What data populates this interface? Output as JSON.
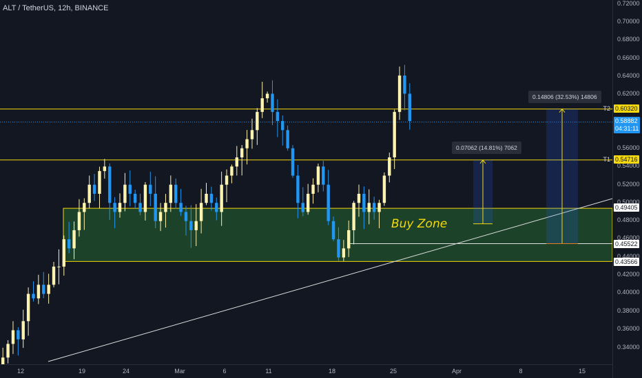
{
  "header": {
    "title": "ALT / TetherUS, 12h, BINANCE"
  },
  "y_axis": {
    "labels": [
      "0.72000",
      "0.70000",
      "0.68000",
      "0.66000",
      "0.64000",
      "0.62000",
      "0.56000",
      "0.54000",
      "0.52000",
      "0.50000",
      "0.48000",
      "0.46000",
      "0.44000",
      "0.42000",
      "0.40000",
      "0.38000",
      "0.36000",
      "0.34000"
    ]
  },
  "price_tags": {
    "t2": "0.60320",
    "current": "0.58882",
    "countdown": "04:31:11",
    "t1": "0.54716",
    "zone_top": "0.49405",
    "mid": "0.45522",
    "zone_bottom": "0.43566"
  },
  "x_axis": {
    "labels": [
      "12",
      "19",
      "24",
      "Mar",
      "6",
      "11",
      "18",
      "25",
      "Apr",
      "8",
      "15"
    ]
  },
  "annotations": {
    "t2_label": "T2",
    "t1_label": "T1",
    "buy_zone": "Buy Zone",
    "measure_small": "0.07062 (14.81%) 7062",
    "measure_large": "0.14806 (32.53%) 14806"
  },
  "colors": {
    "background": "#131722",
    "up": "#fff3b0",
    "down": "#2196f3",
    "level_line": "#f5d90a",
    "zone_fill": "#1f4a2a",
    "current_tag": "#2196f3"
  },
  "chart_data": {
    "type": "candlestick",
    "symbol": "ALT / TetherUS",
    "interval": "12h",
    "exchange": "BINANCE",
    "levels": {
      "T2": 0.6032,
      "T1": 0.54716,
      "zone_top": 0.49405,
      "zone_bottom": 0.43566,
      "mid": 0.45522
    },
    "current_price": 0.58882,
    "ylim": [
      0.33,
      0.72
    ],
    "close_path": [
      0.33,
      0.345,
      0.36,
      0.35,
      0.37,
      0.4,
      0.395,
      0.41,
      0.4,
      0.41,
      0.43,
      0.43,
      0.46,
      0.45,
      0.47,
      0.49,
      0.5,
      0.52,
      0.51,
      0.535,
      0.54,
      0.5,
      0.49,
      0.5,
      0.52,
      0.51,
      0.5,
      0.49,
      0.52,
      0.51,
      0.48,
      0.49,
      0.5,
      0.52,
      0.5,
      0.49,
      0.48,
      0.47,
      0.48,
      0.5,
      0.51,
      0.5,
      0.49,
      0.52,
      0.53,
      0.54,
      0.55,
      0.56,
      0.57,
      0.58,
      0.6,
      0.615,
      0.62,
      0.6,
      0.59,
      0.58,
      0.56,
      0.53,
      0.5,
      0.49,
      0.51,
      0.52,
      0.54,
      0.52,
      0.48,
      0.46,
      0.44,
      0.45,
      0.47,
      0.5,
      0.51,
      0.49,
      0.5,
      0.49,
      0.5,
      0.53,
      0.55,
      0.6,
      0.64,
      0.62,
      0.59
    ]
  }
}
